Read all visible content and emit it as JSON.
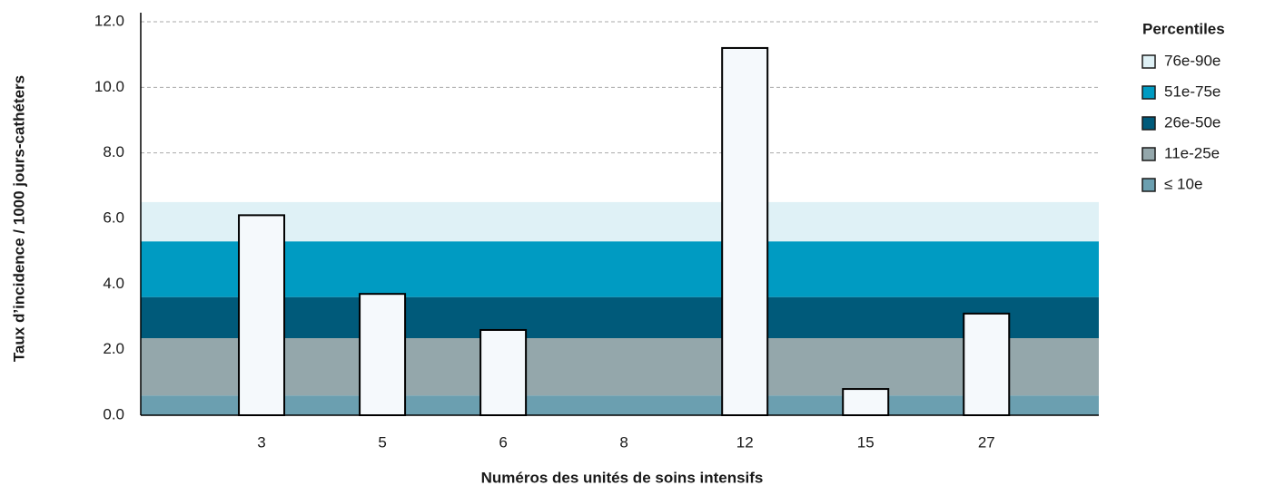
{
  "chart_data": {
    "type": "bar",
    "x_label": "Numéros des unités de soins intensifs",
    "y_label": "Taux d’incidence / 1000 jours-cathéters",
    "categories": [
      "3",
      "5",
      "6",
      "8",
      "12",
      "15",
      "27"
    ],
    "values": [
      6.1,
      3.7,
      2.6,
      0,
      11.2,
      0.8,
      3.1
    ],
    "color": "#f5f9fc",
    "ylim": [
      0,
      12
    ],
    "yticks": [
      {
        "value": 0,
        "label": "0.0"
      },
      {
        "value": 2,
        "label": "2.0"
      },
      {
        "value": 4,
        "label": "4.0"
      },
      {
        "value": 6,
        "label": "6.0"
      },
      {
        "value": 8,
        "label": "8.0"
      },
      {
        "value": 10,
        "label": "10.0"
      },
      {
        "value": 12,
        "label": "12.0"
      }
    ],
    "grid": true,
    "legend_title": "Percentiles",
    "legend_position": "right",
    "percentile_bands": [
      {
        "name": "76e-90e",
        "color": "#dff1f6",
        "from": 5.3,
        "to": 6.5
      },
      {
        "name": "51e-75e",
        "color": "#009bc2",
        "from": 3.6,
        "to": 5.3
      },
      {
        "name": "26e-50e",
        "color": "#005a7a",
        "from": 2.35,
        "to": 3.6
      },
      {
        "name": "11e-25e",
        "color": "#94a7ab",
        "from": 0.6,
        "to": 2.35
      },
      {
        "name": "≤ 10e",
        "color": "#6b9fb0",
        "from": 0,
        "to": 0.6
      }
    ]
  }
}
